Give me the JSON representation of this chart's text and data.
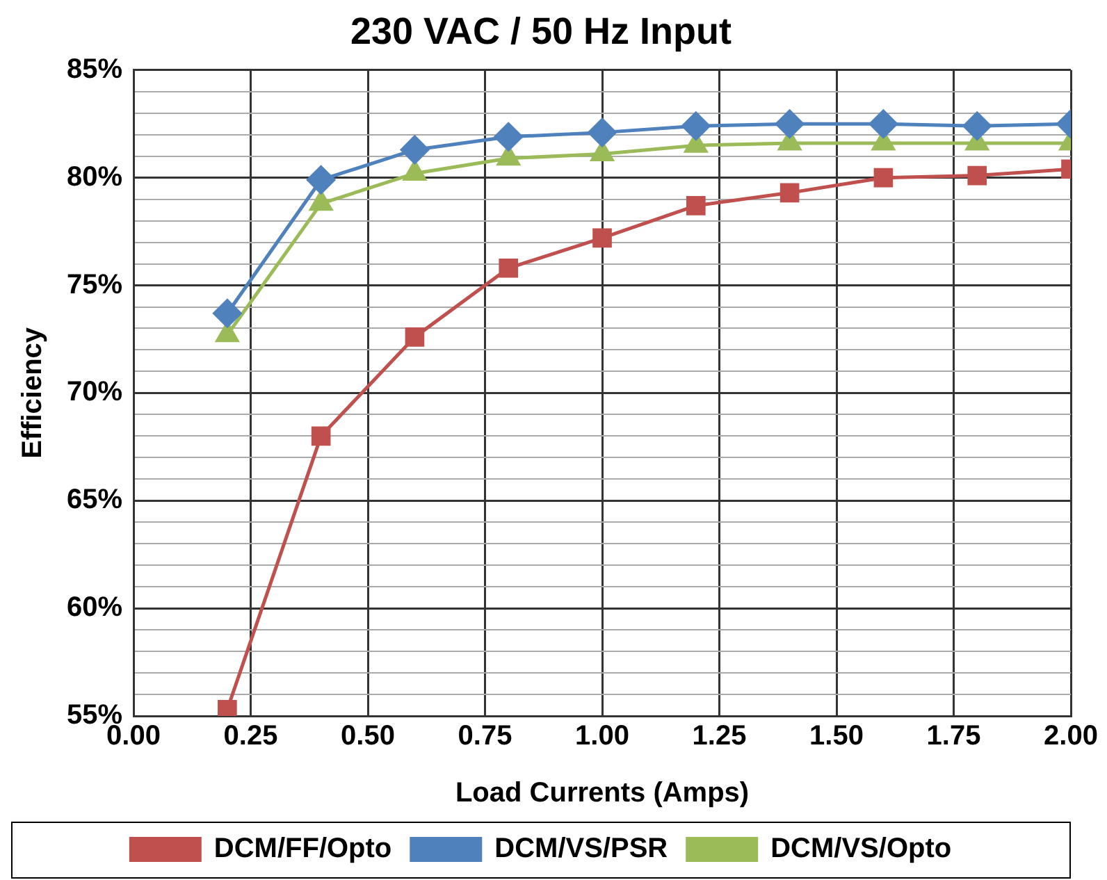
{
  "chart_data": {
    "type": "line",
    "title": "230 VAC / 50 Hz Input",
    "xlabel": "Load Currents (Amps)",
    "ylabel": "Efficiency",
    "x": [
      0.2,
      0.4,
      0.6,
      0.8,
      1.0,
      1.2,
      1.4,
      1.6,
      1.8,
      2.0
    ],
    "series": [
      {
        "name": "DCM/FF/Opto",
        "color": "#c0504d",
        "marker": "square",
        "values": [
          55.3,
          68.0,
          72.6,
          75.8,
          77.2,
          78.7,
          79.3,
          80.0,
          80.1,
          80.4
        ]
      },
      {
        "name": "DCM/VS/PSR",
        "color": "#4f81bd",
        "marker": "diamond",
        "values": [
          73.7,
          79.9,
          81.3,
          81.9,
          82.1,
          82.4,
          82.5,
          82.5,
          82.4,
          82.5
        ]
      },
      {
        "name": "DCM/VS/Opto",
        "color": "#9bbb59",
        "marker": "triangle",
        "values": [
          72.7,
          78.8,
          80.2,
          80.9,
          81.1,
          81.5,
          81.6,
          81.6,
          81.6,
          81.6
        ]
      }
    ],
    "xlim": [
      0,
      2
    ],
    "xticks": [
      {
        "value": 0,
        "label": "0.00"
      },
      {
        "value": 0.25,
        "label": "0.25"
      },
      {
        "value": 0.5,
        "label": "0.50"
      },
      {
        "value": 0.75,
        "label": "0.75"
      },
      {
        "value": 1,
        "label": "1.00"
      },
      {
        "value": 1.25,
        "label": "1.25"
      },
      {
        "value": 1.5,
        "label": "1.50"
      },
      {
        "value": 1.75,
        "label": "1.75"
      },
      {
        "value": 2,
        "label": "2.00"
      }
    ],
    "ylim": [
      55,
      85
    ],
    "yticks": [
      {
        "value": 55,
        "label": "55%"
      },
      {
        "value": 56,
        "label": null
      },
      {
        "value": 57,
        "label": null
      },
      {
        "value": 58,
        "label": null
      },
      {
        "value": 59,
        "label": null
      },
      {
        "value": 60,
        "label": "60%"
      },
      {
        "value": 61,
        "label": null
      },
      {
        "value": 62,
        "label": null
      },
      {
        "value": 63,
        "label": null
      },
      {
        "value": 64,
        "label": null
      },
      {
        "value": 65,
        "label": "65%"
      },
      {
        "value": 66,
        "label": null
      },
      {
        "value": 67,
        "label": null
      },
      {
        "value": 68,
        "label": null
      },
      {
        "value": 69,
        "label": null
      },
      {
        "value": 70,
        "label": "70%"
      },
      {
        "value": 71,
        "label": null
      },
      {
        "value": 72,
        "label": null
      },
      {
        "value": 73,
        "label": null
      },
      {
        "value": 74,
        "label": null
      },
      {
        "value": 75,
        "label": "75%"
      },
      {
        "value": 76,
        "label": null
      },
      {
        "value": 77,
        "label": null
      },
      {
        "value": 78,
        "label": null
      },
      {
        "value": 79,
        "label": null
      },
      {
        "value": 80,
        "label": "80%"
      },
      {
        "value": 81,
        "label": null
      },
      {
        "value": 82,
        "label": null
      },
      {
        "value": 83,
        "label": null
      },
      {
        "value": 84,
        "label": null
      },
      {
        "value": 85,
        "label": "85%"
      }
    ],
    "grid": true,
    "legend": "bottom",
    "line_style": "solid"
  }
}
